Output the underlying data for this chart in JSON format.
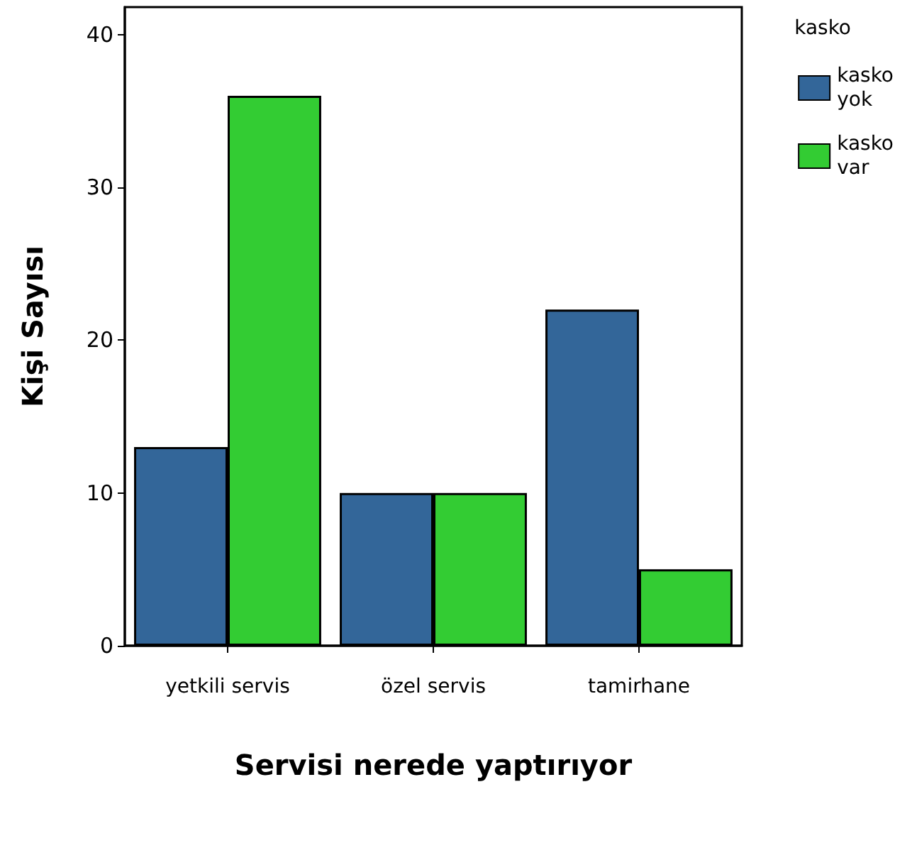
{
  "chart_data": {
    "type": "bar",
    "xlabel": "Servisi nerede yaptırıyor",
    "ylabel": "Kişi Sayısı",
    "legend_title": "kasko",
    "categories": [
      "yetkili servis",
      "özel servis",
      "tamirhane"
    ],
    "series": [
      {
        "name": "kasko yok",
        "color": "#336699",
        "values": [
          13,
          10,
          22
        ]
      },
      {
        "name": "kasko var",
        "color": "#33cc33",
        "values": [
          36,
          10,
          5
        ]
      }
    ],
    "ylim": [
      0,
      41.8
    ],
    "yticks": [
      0,
      10,
      20,
      30,
      40
    ],
    "grid": false,
    "legend": "top right"
  }
}
